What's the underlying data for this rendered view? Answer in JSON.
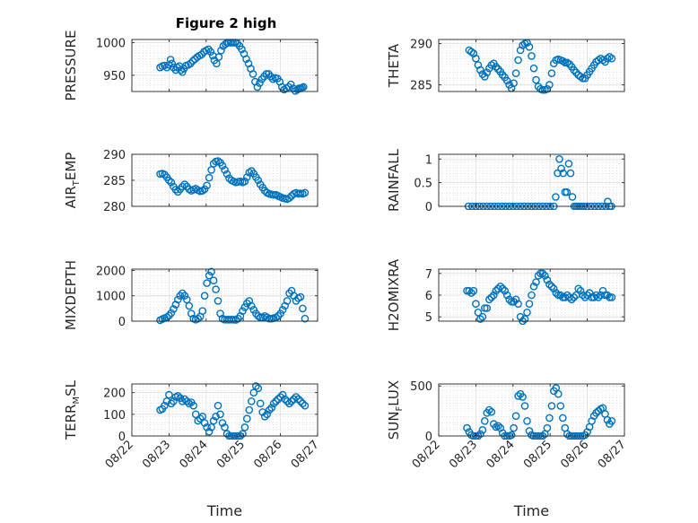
{
  "figure": {
    "title": "Figure 2 high"
  },
  "chart_data": [
    {
      "type": "scatter",
      "panel": "pressure",
      "title": "Figure 2 high",
      "ylabel": "PRESSURE",
      "ylabel_sub": "",
      "ylabel_rest": "",
      "xlabel": "",
      "xlim": [
        0,
        5
      ],
      "ylim": [
        925,
        1005
      ],
      "yticks": [
        950,
        1000
      ],
      "ytick_labels": [
        "950",
        "1000"
      ],
      "xtick_labels": [],
      "grid": true,
      "x": [
        0.76,
        0.82,
        0.88,
        0.94,
        1.0,
        1.04,
        1.08,
        1.12,
        1.18,
        1.22,
        1.28,
        1.32,
        1.36,
        1.4,
        1.46,
        1.52,
        1.58,
        1.64,
        1.7,
        1.76,
        1.82,
        1.88,
        1.94,
        2.0,
        2.06,
        2.12,
        2.18,
        2.22,
        2.28,
        2.34,
        2.4,
        2.46,
        2.52,
        2.56,
        2.6,
        2.66,
        2.72,
        2.78,
        2.84,
        2.9,
        2.96,
        3.02,
        3.08,
        3.14,
        3.2,
        3.26,
        3.32,
        3.38,
        3.44,
        3.5,
        3.56,
        3.62,
        3.68,
        3.74,
        3.8,
        3.86,
        3.92,
        3.98,
        4.04,
        4.1,
        4.16,
        4.22,
        4.28,
        4.34,
        4.4,
        4.46,
        4.5,
        4.54,
        4.58,
        4.62
      ],
      "values": [
        962,
        964,
        965,
        962,
        966,
        974,
        968,
        962,
        958,
        962,
        964,
        958,
        955,
        960,
        965,
        966,
        968,
        972,
        975,
        978,
        980,
        982,
        986,
        988,
        990,
        986,
        980,
        973,
        968,
        978,
        988,
        995,
        998,
        1000,
        1000,
        1000,
        1000,
        1000,
        999,
        995,
        990,
        983,
        975,
        968,
        960,
        952,
        940,
        932,
        938,
        944,
        948,
        952,
        952,
        948,
        944,
        946,
        945,
        940,
        932,
        928,
        930,
        932,
        936,
        930,
        926,
        928,
        930,
        930,
        931,
        932
      ]
    },
    {
      "type": "scatter",
      "panel": "theta",
      "title": "",
      "ylabel": "THETA",
      "ylabel_sub": "",
      "ylabel_rest": "",
      "xlabel": "",
      "xlim": [
        0,
        5
      ],
      "ylim": [
        284.2,
        290.5
      ],
      "yticks": [
        285,
        290
      ],
      "ytick_labels": [
        "285",
        "290"
      ],
      "grid": true,
      "x": [
        0.82,
        0.88,
        0.94,
        1.0,
        1.06,
        1.12,
        1.18,
        1.24,
        1.3,
        1.36,
        1.42,
        1.48,
        1.54,
        1.6,
        1.66,
        1.72,
        1.78,
        1.84,
        1.9,
        1.96,
        2.02,
        2.08,
        2.14,
        2.2,
        2.26,
        2.32,
        2.38,
        2.44,
        2.5,
        2.56,
        2.62,
        2.68,
        2.74,
        2.8,
        2.86,
        2.92,
        2.98,
        3.04,
        3.1,
        3.16,
        3.22,
        3.28,
        3.34,
        3.4,
        3.46,
        3.52,
        3.58,
        3.64,
        3.7,
        3.76,
        3.82,
        3.88,
        3.94,
        4.0,
        4.06,
        4.12,
        4.18,
        4.24,
        4.3,
        4.36,
        4.42,
        4.48,
        4.54,
        4.6,
        4.66
      ],
      "values": [
        289.2,
        289.0,
        288.8,
        288.2,
        287.4,
        286.8,
        286.3,
        286.0,
        286.5,
        287.0,
        287.4,
        287.6,
        287.2,
        286.9,
        286.6,
        286.2,
        285.9,
        285.5,
        285.0,
        284.6,
        285.2,
        286.4,
        288.0,
        289.2,
        289.8,
        290.0,
        290.1,
        289.6,
        288.5,
        287.0,
        285.6,
        284.8,
        284.5,
        284.4,
        284.4,
        284.5,
        285.0,
        286.4,
        287.6,
        288.0,
        288.1,
        288.0,
        287.9,
        287.7,
        287.7,
        287.5,
        287.2,
        286.8,
        286.5,
        286.2,
        286.0,
        285.8,
        285.8,
        286.2,
        286.6,
        287.0,
        287.4,
        287.8,
        288.0,
        288.2,
        288.0,
        287.8,
        288.2,
        288.4,
        288.2
      ]
    },
    {
      "type": "scatter",
      "panel": "air_temp",
      "title": "",
      "ylabel": "AIR",
      "ylabel_sub": "T",
      "ylabel_rest": "EMP",
      "xlabel": "",
      "xlim": [
        0,
        5
      ],
      "ylim": [
        280,
        290
      ],
      "yticks": [
        280,
        285,
        290
      ],
      "ytick_labels": [
        "280",
        "285",
        "290"
      ],
      "grid": true,
      "x": [
        0.76,
        0.82,
        0.88,
        0.94,
        1.0,
        1.06,
        1.12,
        1.18,
        1.24,
        1.3,
        1.36,
        1.42,
        1.48,
        1.54,
        1.6,
        1.66,
        1.72,
        1.78,
        1.84,
        1.9,
        1.96,
        2.02,
        2.08,
        2.14,
        2.2,
        2.26,
        2.32,
        2.38,
        2.44,
        2.5,
        2.56,
        2.62,
        2.68,
        2.74,
        2.8,
        2.86,
        2.92,
        2.98,
        3.04,
        3.1,
        3.16,
        3.22,
        3.28,
        3.34,
        3.4,
        3.46,
        3.52,
        3.58,
        3.64,
        3.7,
        3.76,
        3.82,
        3.88,
        3.94,
        4.0,
        4.06,
        4.12,
        4.18,
        4.24,
        4.3,
        4.36,
        4.42,
        4.48,
        4.54,
        4.6,
        4.66
      ],
      "values": [
        286.2,
        286.3,
        286.1,
        285.6,
        285.0,
        284.6,
        283.8,
        283.2,
        282.8,
        283.3,
        283.8,
        284.2,
        283.8,
        283.3,
        283.0,
        283.2,
        283.4,
        283.1,
        282.9,
        283.0,
        283.3,
        284.0,
        285.5,
        287.0,
        288.2,
        288.6,
        288.7,
        288.4,
        287.8,
        287.0,
        286.2,
        285.4,
        285.0,
        284.8,
        284.6,
        284.7,
        284.8,
        284.6,
        284.8,
        285.6,
        286.5,
        286.8,
        286.3,
        285.6,
        285.0,
        284.2,
        283.6,
        283.0,
        282.6,
        282.4,
        282.3,
        282.2,
        282.2,
        282.0,
        281.8,
        281.6,
        281.5,
        281.4,
        281.6,
        282.0,
        282.4,
        282.6,
        282.4,
        282.5,
        282.4,
        282.6
      ]
    },
    {
      "type": "scatter",
      "panel": "rainfall",
      "title": "",
      "ylabel": "RAINFALL",
      "ylabel_sub": "",
      "ylabel_rest": "",
      "xlabel": "",
      "xlim": [
        0,
        5
      ],
      "ylim": [
        0,
        1.1
      ],
      "yticks": [
        0,
        0.5,
        1
      ],
      "ytick_labels": [
        "0",
        "0.5",
        "1"
      ],
      "grid": true,
      "x": [
        0.8,
        0.9,
        1.0,
        1.1,
        1.2,
        1.3,
        1.4,
        1.5,
        1.6,
        1.7,
        1.8,
        1.9,
        2.0,
        2.1,
        2.2,
        2.3,
        2.4,
        2.5,
        2.6,
        2.7,
        2.8,
        2.9,
        3.0,
        3.1,
        3.15,
        3.2,
        3.25,
        3.3,
        3.35,
        3.4,
        3.45,
        3.5,
        3.55,
        3.6,
        3.65,
        3.7,
        3.75,
        3.8,
        3.85,
        3.9,
        4.0,
        4.1,
        4.2,
        4.3,
        4.4,
        4.5,
        4.55,
        4.6,
        4.65
      ],
      "values": [
        0,
        0,
        0,
        0,
        0,
        0,
        0,
        0,
        0,
        0,
        0,
        0,
        0,
        0,
        0,
        0,
        0,
        0,
        0,
        0,
        0,
        0,
        0,
        0,
        0.2,
        0.7,
        1.0,
        0.8,
        0.7,
        0.3,
        0.3,
        0.9,
        0.7,
        0.2,
        0,
        0,
        0,
        0,
        0,
        0,
        0,
        0,
        0,
        0,
        0,
        0,
        0.1,
        0,
        0
      ]
    },
    {
      "type": "scatter",
      "panel": "mixdepth",
      "title": "",
      "ylabel": "MIXDEPTH",
      "ylabel_sub": "",
      "ylabel_rest": "",
      "xlabel": "",
      "xlim": [
        0,
        5
      ],
      "ylim": [
        0,
        2050
      ],
      "yticks": [
        0,
        1000,
        2000
      ],
      "ytick_labels": [
        "0",
        "1000",
        "2000"
      ],
      "grid": true,
      "x": [
        0.76,
        0.82,
        0.88,
        0.94,
        1.0,
        1.06,
        1.12,
        1.18,
        1.24,
        1.3,
        1.36,
        1.42,
        1.48,
        1.54,
        1.6,
        1.66,
        1.72,
        1.78,
        1.84,
        1.9,
        1.96,
        2.02,
        2.08,
        2.14,
        2.2,
        2.26,
        2.32,
        2.38,
        2.44,
        2.5,
        2.56,
        2.62,
        2.68,
        2.74,
        2.8,
        2.86,
        2.92,
        2.98,
        3.04,
        3.1,
        3.16,
        3.22,
        3.28,
        3.34,
        3.4,
        3.46,
        3.52,
        3.58,
        3.64,
        3.7,
        3.76,
        3.82,
        3.88,
        3.94,
        4.0,
        4.06,
        4.12,
        4.18,
        4.24,
        4.3,
        4.36,
        4.42,
        4.48,
        4.54,
        4.6,
        4.66
      ],
      "values": [
        40,
        80,
        120,
        160,
        220,
        320,
        480,
        650,
        850,
        1000,
        1100,
        1000,
        850,
        600,
        300,
        100,
        60,
        100,
        180,
        400,
        1000,
        1500,
        1800,
        1950,
        1600,
        1250,
        800,
        300,
        100,
        60,
        60,
        60,
        60,
        60,
        50,
        100,
        200,
        400,
        550,
        700,
        800,
        600,
        450,
        300,
        200,
        150,
        150,
        200,
        150,
        100,
        100,
        120,
        150,
        200,
        300,
        450,
        600,
        800,
        1100,
        1200,
        1000,
        800,
        900,
        950,
        500,
        100
      ]
    },
    {
      "type": "scatter",
      "panel": "h2omixra",
      "title": "",
      "ylabel": "H2OMIXRA",
      "ylabel_sub": "",
      "ylabel_rest": "",
      "xlabel": "",
      "xlim": [
        0,
        5
      ],
      "ylim": [
        4.8,
        7.2
      ],
      "yticks": [
        5,
        6,
        7
      ],
      "ytick_labels": [
        "5",
        "6",
        "7"
      ],
      "grid": true,
      "x": [
        0.76,
        0.82,
        0.88,
        0.94,
        1.0,
        1.06,
        1.12,
        1.18,
        1.24,
        1.3,
        1.36,
        1.42,
        1.48,
        1.54,
        1.6,
        1.66,
        1.72,
        1.78,
        1.84,
        1.9,
        1.96,
        2.02,
        2.08,
        2.14,
        2.2,
        2.26,
        2.32,
        2.38,
        2.44,
        2.5,
        2.56,
        2.62,
        2.68,
        2.74,
        2.8,
        2.86,
        2.92,
        2.98,
        3.04,
        3.1,
        3.16,
        3.22,
        3.28,
        3.34,
        3.4,
        3.46,
        3.52,
        3.58,
        3.64,
        3.7,
        3.76,
        3.82,
        3.88,
        3.94,
        4.0,
        4.06,
        4.12,
        4.18,
        4.24,
        4.3,
        4.36,
        4.42,
        4.48,
        4.54,
        4.6,
        4.66
      ],
      "values": [
        6.2,
        6.2,
        6.1,
        6.2,
        5.6,
        5.2,
        4.9,
        5.0,
        5.4,
        5.4,
        5.8,
        5.9,
        6.0,
        6.2,
        6.3,
        6.4,
        6.3,
        6.2,
        6.0,
        5.8,
        5.7,
        5.7,
        5.8,
        5.6,
        5.0,
        4.8,
        4.9,
        5.2,
        5.6,
        6.0,
        6.4,
        6.6,
        6.9,
        7.0,
        7.0,
        6.9,
        6.7,
        6.5,
        6.4,
        6.3,
        6.1,
        6.0,
        6.0,
        5.9,
        5.9,
        6.0,
        5.9,
        5.8,
        5.9,
        6.0,
        6.3,
        6.2,
        6.0,
        5.9,
        6.0,
        6.1,
        5.9,
        5.9,
        6.0,
        5.9,
        6.0,
        6.2,
        6.0,
        6.0,
        5.9,
        5.9
      ]
    },
    {
      "type": "scatter",
      "panel": "terr_msl",
      "title": "",
      "ylabel": "TERR",
      "ylabel_sub": "M",
      "ylabel_rest": "SL",
      "xlabel": "Time",
      "xlim": [
        0,
        5
      ],
      "ylim": [
        0,
        240
      ],
      "yticks": [
        0,
        100,
        200
      ],
      "ytick_labels": [
        "0",
        "100",
        "200"
      ],
      "xtick_labels": [
        "08/22",
        "08/23",
        "08/24",
        "08/25",
        "08/26",
        "08/27"
      ],
      "grid": true,
      "x": [
        0.76,
        0.82,
        0.88,
        0.94,
        1.0,
        1.06,
        1.12,
        1.18,
        1.24,
        1.3,
        1.36,
        1.42,
        1.48,
        1.54,
        1.6,
        1.66,
        1.72,
        1.78,
        1.84,
        1.9,
        1.96,
        2.02,
        2.08,
        2.14,
        2.2,
        2.26,
        2.32,
        2.38,
        2.44,
        2.5,
        2.56,
        2.62,
        2.68,
        2.74,
        2.8,
        2.86,
        2.92,
        2.98,
        3.04,
        3.1,
        3.16,
        3.22,
        3.28,
        3.34,
        3.4,
        3.46,
        3.52,
        3.58,
        3.64,
        3.7,
        3.76,
        3.82,
        3.88,
        3.94,
        4.0,
        4.06,
        4.12,
        4.18,
        4.24,
        4.3,
        4.36,
        4.42,
        4.48,
        4.54,
        4.6,
        4.66
      ],
      "values": [
        120,
        125,
        140,
        160,
        190,
        150,
        160,
        180,
        185,
        175,
        160,
        170,
        160,
        150,
        155,
        140,
        100,
        70,
        80,
        90,
        60,
        40,
        20,
        40,
        70,
        90,
        140,
        100,
        60,
        40,
        10,
        0,
        0,
        0,
        0,
        0,
        0,
        10,
        40,
        80,
        120,
        160,
        200,
        230,
        220,
        150,
        110,
        90,
        100,
        120,
        130,
        150,
        160,
        170,
        180,
        190,
        170,
        160,
        150,
        160,
        170,
        180,
        170,
        160,
        150,
        140
      ]
    },
    {
      "type": "scatter",
      "panel": "sun_flux",
      "title": "",
      "ylabel": "SUN",
      "ylabel_sub": "F",
      "ylabel_rest": "LUX",
      "xlabel": "Time",
      "xlim": [
        0,
        5
      ],
      "ylim": [
        0,
        520
      ],
      "yticks": [
        0,
        500
      ],
      "ytick_labels": [
        "0",
        "500"
      ],
      "xtick_labels": [
        "08/22",
        "08/23",
        "08/24",
        "08/25",
        "08/26",
        "08/27"
      ],
      "grid": true,
      "x": [
        0.76,
        0.82,
        0.88,
        0.94,
        1.0,
        1.06,
        1.12,
        1.18,
        1.24,
        1.3,
        1.36,
        1.42,
        1.48,
        1.54,
        1.6,
        1.66,
        1.72,
        1.78,
        1.84,
        1.9,
        1.96,
        2.02,
        2.08,
        2.14,
        2.2,
        2.26,
        2.32,
        2.38,
        2.44,
        2.5,
        2.56,
        2.62,
        2.68,
        2.74,
        2.8,
        2.86,
        2.92,
        2.98,
        3.04,
        3.1,
        3.16,
        3.22,
        3.28,
        3.34,
        3.4,
        3.46,
        3.52,
        3.58,
        3.64,
        3.7,
        3.76,
        3.82,
        3.88,
        3.94,
        4.0,
        4.06,
        4.12,
        4.18,
        4.24,
        4.3,
        4.36,
        4.42,
        4.48,
        4.54,
        4.6,
        4.66
      ],
      "values": [
        80,
        40,
        10,
        0,
        0,
        0,
        20,
        60,
        150,
        230,
        260,
        240,
        120,
        90,
        100,
        80,
        30,
        0,
        0,
        0,
        10,
        80,
        200,
        400,
        420,
        390,
        300,
        150,
        50,
        10,
        0,
        0,
        0,
        0,
        0,
        20,
        80,
        180,
        300,
        450,
        480,
        420,
        300,
        180,
        80,
        20,
        0,
        0,
        0,
        0,
        0,
        0,
        0,
        10,
        40,
        90,
        150,
        200,
        230,
        250,
        270,
        280,
        220,
        160,
        120,
        150
      ]
    }
  ]
}
